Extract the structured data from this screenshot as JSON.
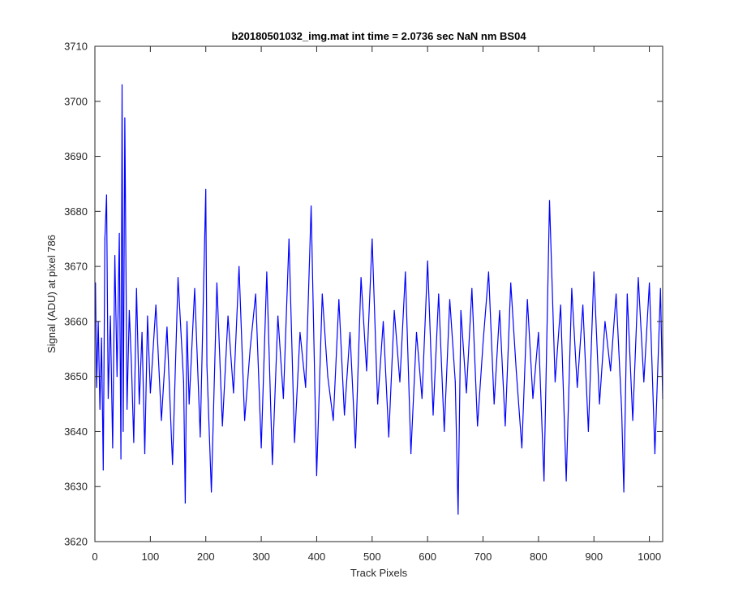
{
  "chart_data": {
    "type": "line",
    "title": "b20180501032_img.mat int time = 2.0736 sec  NaN nm BS04",
    "xlabel": "Track Pixels",
    "ylabel": "Signal (ADU) at pixel 786",
    "xlim": [
      0,
      1024
    ],
    "ylim": [
      3620,
      3710
    ],
    "xticks": [
      0,
      100,
      200,
      300,
      400,
      500,
      600,
      700,
      800,
      900,
      1000
    ],
    "yticks": [
      3620,
      3630,
      3640,
      3650,
      3660,
      3670,
      3680,
      3690,
      3700,
      3710
    ],
    "grid": false,
    "line_color": "#0000ff",
    "series": [
      {
        "x": [
          1,
          3,
          6,
          9,
          12,
          15,
          18,
          21,
          24,
          28,
          32,
          36,
          40,
          44,
          47,
          49,
          51,
          54,
          58,
          62,
          66,
          70,
          75,
          80,
          85,
          90,
          95,
          100,
          110,
          120,
          130,
          140,
          150,
          160,
          163,
          166,
          170,
          180,
          190,
          200,
          202,
          210,
          220,
          230,
          240,
          250,
          260,
          270,
          280,
          290,
          300,
          310,
          320,
          330,
          340,
          350,
          360,
          370,
          380,
          390,
          400,
          410,
          420,
          430,
          440,
          450,
          460,
          470,
          480,
          490,
          500,
          510,
          520,
          530,
          540,
          550,
          560,
          570,
          580,
          590,
          600,
          610,
          620,
          630,
          640,
          650,
          655,
          660,
          670,
          680,
          690,
          700,
          710,
          720,
          730,
          740,
          750,
          760,
          770,
          780,
          790,
          800,
          810,
          820,
          830,
          840,
          850,
          860,
          870,
          880,
          890,
          900,
          910,
          920,
          930,
          940,
          950,
          954,
          960,
          970,
          980,
          990,
          1000,
          1010,
          1020,
          1024
        ],
        "y": [
          3667,
          3648,
          3660,
          3644,
          3657,
          3633,
          3675,
          3683,
          3646,
          3661,
          3637,
          3672,
          3650,
          3676,
          3635,
          3703,
          3640,
          3697,
          3644,
          3662,
          3652,
          3638,
          3666,
          3645,
          3658,
          3636,
          3661,
          3647,
          3663,
          3642,
          3659,
          3634,
          3668,
          3649,
          3627,
          3660,
          3645,
          3666,
          3639,
          3684,
          3652,
          3629,
          3667,
          3641,
          3661,
          3647,
          3670,
          3642,
          3655,
          3665,
          3637,
          3669,
          3634,
          3661,
          3646,
          3675,
          3638,
          3658,
          3648,
          3681,
          3632,
          3665,
          3650,
          3642,
          3664,
          3643,
          3658,
          3637,
          3668,
          3651,
          3675,
          3645,
          3660,
          3639,
          3662,
          3649,
          3669,
          3636,
          3658,
          3646,
          3671,
          3643,
          3665,
          3640,
          3664,
          3649,
          3625,
          3662,
          3647,
          3666,
          3641,
          3656,
          3669,
          3645,
          3662,
          3641,
          3667,
          3651,
          3637,
          3664,
          3646,
          3658,
          3631,
          3682,
          3649,
          3663,
          3631,
          3666,
          3648,
          3663,
          3640,
          3669,
          3645,
          3660,
          3651,
          3665,
          3644,
          3629,
          3665,
          3642,
          3668,
          3649,
          3667,
          3636,
          3666,
          3646
        ]
      }
    ]
  }
}
